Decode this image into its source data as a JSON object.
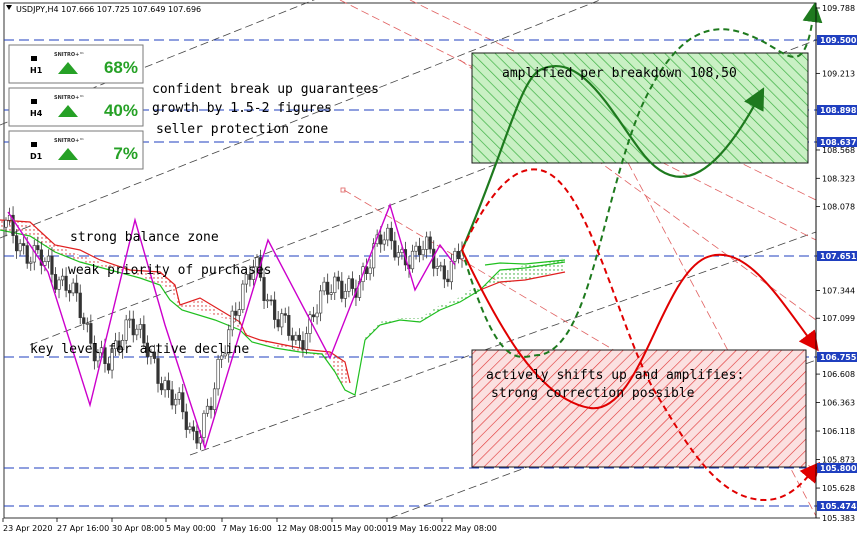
{
  "symbol_line": "USDJPY,H4  107.666 107.725 107.649 107.696",
  "chart_data": {
    "type": "candlestick",
    "title": "USDJPY,H4",
    "ohlc": {
      "open": 107.666,
      "high": 107.725,
      "low": 107.649,
      "close": 107.696
    },
    "ylim": [
      105.383,
      109.788
    ],
    "y_ticks": [
      109.788,
      109.5,
      109.213,
      108.898,
      108.637,
      108.568,
      108.323,
      108.078,
      107.651,
      107.344,
      107.099,
      106.755,
      106.608,
      106.363,
      106.118,
      105.873,
      105.8,
      105.628,
      105.474,
      105.383
    ],
    "x_ticks": [
      "23 Apr 2020",
      "27 Apr 16:00",
      "30 Apr 08:00",
      "5 May 00:00",
      "7 May 16:00",
      "12 May 08:00",
      "15 May 00:00",
      "19 May 16:00",
      "22 May 08:00"
    ],
    "price_tags": [
      {
        "value": "109.500",
        "color": "#1f3fbf"
      },
      {
        "value": "108.898",
        "color": "#1f3fbf"
      },
      {
        "value": "108.637",
        "color": "#1f3fbf"
      },
      {
        "value": "107.651",
        "color": "#1f3fbf"
      },
      {
        "value": "106.755",
        "color": "#1f3fbf"
      },
      {
        "value": "105.800",
        "color": "#1f3fbf"
      },
      {
        "value": "105.474",
        "color": "#1f3fbf"
      }
    ],
    "series": [
      {
        "name": "close",
        "x": [
          "23 Apr 2020",
          "24 Apr",
          "25 Apr",
          "27 Apr",
          "28 Apr",
          "29 Apr",
          "30 Apr",
          "1 May",
          "4 May",
          "5 May",
          "6 May",
          "7 May",
          "8 May",
          "11 May",
          "12 May",
          "13 May",
          "14 May",
          "15 May",
          "18 May",
          "19 May",
          "20 May",
          "21 May",
          "22 May"
        ],
        "values": [
          107.9,
          107.7,
          107.55,
          107.4,
          106.95,
          106.65,
          107.15,
          106.7,
          106.45,
          106.05,
          106.4,
          107.2,
          107.55,
          107.15,
          106.85,
          107.2,
          107.45,
          107.3,
          107.9,
          107.6,
          107.75,
          107.5,
          107.696
        ]
      }
    ],
    "zones": [
      {
        "label": "amplified per breakdown 108,50",
        "top": 109.213,
        "bottom": 108.568,
        "color": "#3cb043"
      },
      {
        "label": "actively shifts up and amplifies: strong correction possible",
        "top": 106.755,
        "bottom": 105.873,
        "color": "#e03030"
      }
    ],
    "forecast_paths": [
      {
        "color": "#1e7a1e",
        "style": "solid"
      },
      {
        "color": "#1e7a1e",
        "style": "dashed"
      },
      {
        "color": "#e00000",
        "style": "solid"
      },
      {
        "color": "#e00000",
        "style": "dashed"
      }
    ]
  },
  "panels": [
    {
      "brand": "SNITRO+™",
      "timeframe": "H1",
      "percent": "68%"
    },
    {
      "brand": "SNITRO+™",
      "timeframe": "H4",
      "percent": "40%"
    },
    {
      "brand": "SNITRO+™",
      "timeframe": "D1",
      "percent": "7%"
    }
  ],
  "annotations": [
    {
      "text": "confident break up guarantees"
    },
    {
      "text": "growth by 1.5-2 figures"
    },
    {
      "text": "seller protection zone"
    },
    {
      "text": "strong balance zone"
    },
    {
      "text": "weak priority of purchases"
    },
    {
      "text": "key level for active decline"
    },
    {
      "text": "amplified per breakdown 108,50"
    },
    {
      "text": "actively shifts up and amplifies:"
    },
    {
      "text": "strong correction possible"
    }
  ],
  "colors": {
    "accent_green": "#26a126",
    "accent_red": "#e00000",
    "level_blue": "#1f3fbf"
  }
}
